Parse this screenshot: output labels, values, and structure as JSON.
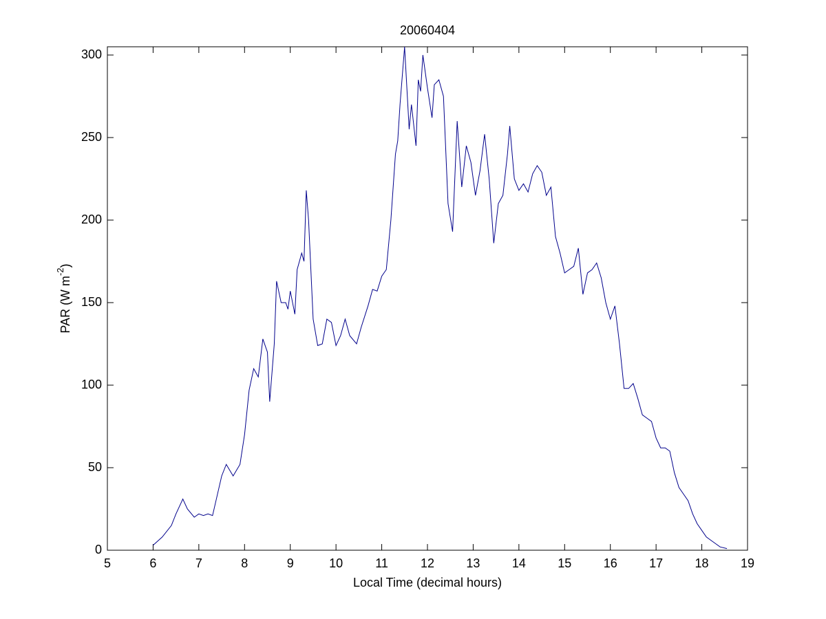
{
  "chart_data": {
    "type": "line",
    "title": "20060404",
    "xlabel": "Local Time (decimal hours)",
    "ylabel": "PAR (W m",
    "ylabel_superscript": "-2",
    "ylabel_end": ")",
    "xlim": [
      5,
      19
    ],
    "xticks": [
      5,
      6,
      7,
      8,
      9,
      10,
      11,
      12,
      13,
      14,
      15,
      16,
      17,
      18,
      19
    ],
    "ylim": [
      0,
      305
    ],
    "yticks": [
      0,
      50,
      100,
      150,
      200,
      250,
      300
    ],
    "grid": false,
    "series": [
      {
        "name": "PAR",
        "color": "#00008b",
        "x": [
          6.0,
          6.2,
          6.4,
          6.5,
          6.6,
          6.65,
          6.75,
          6.9,
          7.0,
          7.1,
          7.2,
          7.3,
          7.4,
          7.5,
          7.6,
          7.75,
          7.9,
          8.0,
          8.1,
          8.2,
          8.3,
          8.4,
          8.5,
          8.55,
          8.65,
          8.7,
          8.8,
          8.9,
          8.95,
          9.0,
          9.1,
          9.15,
          9.25,
          9.3,
          9.35,
          9.4,
          9.5,
          9.6,
          9.7,
          9.8,
          9.9,
          10.0,
          10.1,
          10.2,
          10.3,
          10.45,
          10.55,
          10.7,
          10.8,
          10.9,
          11.0,
          11.1,
          11.2,
          11.3,
          11.35,
          11.4,
          11.5,
          11.6,
          11.65,
          11.75,
          11.8,
          11.85,
          11.9,
          12.0,
          12.1,
          12.15,
          12.25,
          12.35,
          12.45,
          12.55,
          12.65,
          12.75,
          12.85,
          12.95,
          13.05,
          13.15,
          13.25,
          13.35,
          13.45,
          13.55,
          13.65,
          13.75,
          13.8,
          13.9,
          14.0,
          14.1,
          14.2,
          14.3,
          14.4,
          14.5,
          14.6,
          14.7,
          14.8,
          14.9,
          15.0,
          15.1,
          15.2,
          15.3,
          15.4,
          15.5,
          15.6,
          15.7,
          15.8,
          15.9,
          16.0,
          16.1,
          16.2,
          16.3,
          16.4,
          16.5,
          16.6,
          16.7,
          16.8,
          16.9,
          17.0,
          17.1,
          17.2,
          17.3,
          17.4,
          17.5,
          17.6,
          17.7,
          17.8,
          17.9,
          18.0,
          18.1,
          18.2,
          18.3,
          18.4,
          18.55
        ],
        "values": [
          3,
          8,
          15,
          22,
          28,
          31,
          25,
          20,
          22,
          21,
          22,
          21,
          33,
          45,
          52,
          45,
          52,
          70,
          97,
          110,
          105,
          128,
          120,
          90,
          125,
          163,
          150,
          150,
          146,
          157,
          143,
          170,
          180,
          175,
          218,
          200,
          140,
          124,
          125,
          140,
          138,
          124,
          130,
          140,
          130,
          125,
          135,
          148,
          158,
          157,
          166,
          170,
          200,
          240,
          248,
          270,
          305,
          255,
          270,
          245,
          285,
          278,
          300,
          280,
          262,
          282,
          285,
          275,
          210,
          193,
          260,
          220,
          245,
          235,
          215,
          230,
          252,
          225,
          186,
          210,
          215,
          240,
          257,
          225,
          218,
          222,
          217,
          228,
          233,
          229,
          215,
          220,
          190,
          180,
          168,
          170,
          172,
          183,
          155,
          168,
          170,
          174,
          165,
          150,
          140,
          148,
          125,
          98,
          98,
          101,
          92,
          82,
          80,
          78,
          68,
          62,
          62,
          60,
          47,
          38,
          34,
          30,
          22,
          16,
          12,
          8,
          6,
          4,
          2,
          1
        ]
      }
    ]
  }
}
